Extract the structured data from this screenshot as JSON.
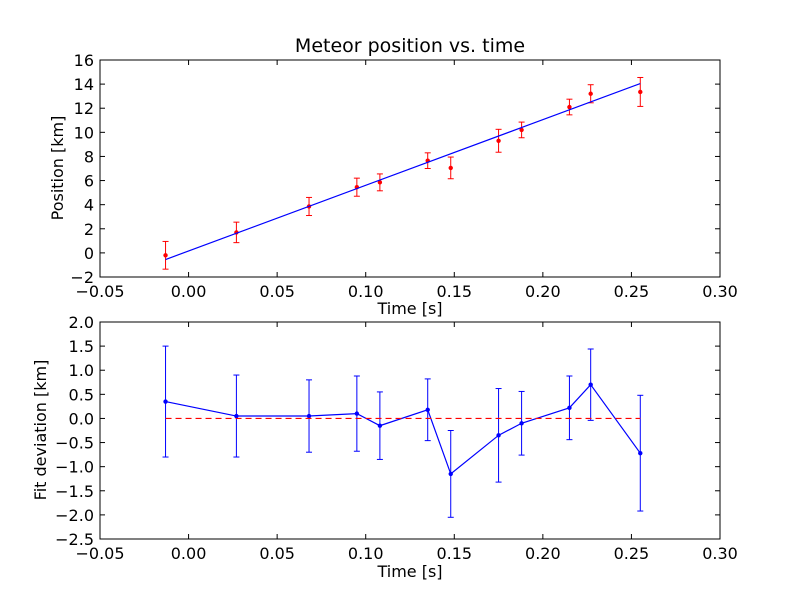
{
  "figure": {
    "title": "Meteor position vs. time"
  },
  "colors": {
    "top_points": "#ff0000",
    "top_fit": "#0000ff",
    "bottom_series": "#0000ff",
    "zero_line": "#ff0000",
    "axes": "#000000"
  },
  "chart_data": [
    {
      "type": "scatter",
      "title": "Meteor position vs. time",
      "xlabel": "Time [s]",
      "ylabel": "Position [km]",
      "xlim": [
        -0.05,
        0.3
      ],
      "ylim": [
        -2,
        16
      ],
      "xticks": [
        "−0.05",
        "0.00",
        "0.05",
        "0.10",
        "0.15",
        "0.20",
        "0.25",
        "0.30"
      ],
      "xtick_values": [
        -0.05,
        0.0,
        0.05,
        0.1,
        0.15,
        0.2,
        0.25,
        0.3
      ],
      "yticks": [
        "−2",
        "0",
        "2",
        "4",
        "6",
        "8",
        "10",
        "12",
        "14",
        "16"
      ],
      "ytick_values": [
        -2,
        0,
        2,
        4,
        6,
        8,
        10,
        12,
        14,
        16
      ],
      "grid": false,
      "series": [
        {
          "kind": "errorbar-points",
          "x": [
            -0.013,
            0.027,
            0.068,
            0.095,
            0.108,
            0.135,
            0.148,
            0.175,
            0.188,
            0.215,
            0.227,
            0.255
          ],
          "y": [
            -0.2,
            1.7,
            3.85,
            5.45,
            5.85,
            7.65,
            7.05,
            9.3,
            10.2,
            12.1,
            13.2,
            13.35
          ],
          "yerr": [
            1.15,
            0.85,
            0.75,
            0.75,
            0.7,
            0.65,
            0.9,
            0.95,
            0.65,
            0.65,
            0.75,
            1.2
          ]
        },
        {
          "kind": "fit-line",
          "x": [
            -0.013,
            0.255
          ],
          "y": [
            -0.55,
            14.05
          ]
        }
      ]
    },
    {
      "type": "line",
      "xlabel": "Time [s]",
      "ylabel": "Fit deviation [km]",
      "xlim": [
        -0.05,
        0.3
      ],
      "ylim": [
        -2.5,
        2.0
      ],
      "xticks": [
        "−0.05",
        "0.00",
        "0.05",
        "0.10",
        "0.15",
        "0.20",
        "0.25",
        "0.30"
      ],
      "xtick_values": [
        -0.05,
        0.0,
        0.05,
        0.1,
        0.15,
        0.2,
        0.25,
        0.3
      ],
      "yticks": [
        "−2.5",
        "−2.0",
        "−1.5",
        "−1.0",
        "−0.5",
        "0.0",
        "0.5",
        "1.0",
        "1.5",
        "2.0"
      ],
      "ytick_values": [
        -2.5,
        -2.0,
        -1.5,
        -1.0,
        -0.5,
        0.0,
        0.5,
        1.0,
        1.5,
        2.0
      ],
      "grid": false,
      "series": [
        {
          "kind": "errorbar-line",
          "x": [
            -0.013,
            0.027,
            0.068,
            0.095,
            0.108,
            0.135,
            0.148,
            0.175,
            0.188,
            0.215,
            0.227,
            0.255
          ],
          "y": [
            0.35,
            0.05,
            0.05,
            0.1,
            -0.15,
            0.18,
            -1.15,
            -0.35,
            -0.1,
            0.22,
            0.7,
            -0.72
          ],
          "yerr": [
            1.15,
            0.85,
            0.75,
            0.78,
            0.7,
            0.64,
            0.9,
            0.97,
            0.66,
            0.66,
            0.74,
            1.2
          ]
        },
        {
          "kind": "zero-reference",
          "x": [
            -0.013,
            0.255
          ],
          "y": [
            0,
            0
          ],
          "style": "dashed"
        }
      ]
    }
  ]
}
